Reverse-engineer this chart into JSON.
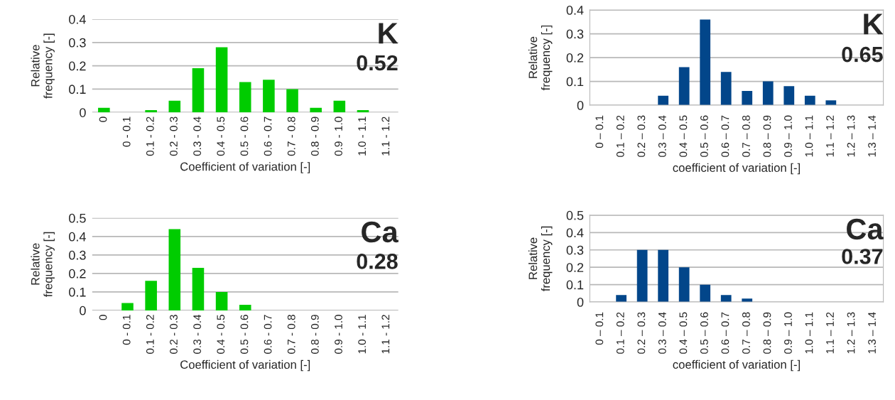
{
  "chart_data": [
    {
      "type": "bar",
      "categories": [
        "0",
        "0 - 0.1",
        "0.1 - 0.2",
        "0.2 - 0.3",
        "0.3 - 0.4",
        "0.4 - 0.5",
        "0.5 - 0.6",
        "0.6 - 0.7",
        "0.7 - 0.8",
        "0.8 - 0.9",
        "0.9 - 1.0",
        "1.0 - 1.1",
        "1.1 - 1.2"
      ],
      "values": [
        0.02,
        0,
        0.01,
        0.05,
        0.19,
        0.28,
        0.13,
        0.14,
        0.1,
        0.02,
        0.05,
        0.01,
        0
      ],
      "color": "#00cc00",
      "ylim": [
        0,
        0.4
      ],
      "yticks": [
        0,
        0.1,
        0.2,
        0.3,
        0.4
      ],
      "grid": "y",
      "xlabel": "Coefficient of variation [-]",
      "ylabel": "Relative\nfrequency [-]",
      "annotations": [
        "K",
        "0.52"
      ]
    },
    {
      "type": "bar",
      "categories": [
        "0 – 0.1",
        "0.1 – 0.2",
        "0.2 – 0.3",
        "0.3 – 0.4",
        "0.4 – 0.5",
        "0.5 – 0.6",
        "0.6 – 0.7",
        "0.7 – 0.8",
        "0.8 – 0.9",
        "0.9 – 1.0",
        "1.0 – 1.1",
        "1.1 – 1.2",
        "1.2 – 1.3",
        "1.3 – 1.4"
      ],
      "values": [
        0,
        0,
        0,
        0.04,
        0.16,
        0.36,
        0.14,
        0.06,
        0.1,
        0.08,
        0.04,
        0.02,
        0,
        0
      ],
      "color": "#02468a",
      "ylim": [
        0,
        0.4
      ],
      "yticks": [
        0,
        0.1,
        0.2,
        0.3,
        0.4
      ],
      "grid": "y",
      "xlabel": "coefficient of variation [-]",
      "ylabel": "Relative\nfrequency [-]",
      "annotations": [
        "K",
        "0.65"
      ]
    },
    {
      "type": "bar",
      "categories": [
        "0",
        "0 - 0.1",
        "0.1 - 0.2",
        "0.2 - 0.3",
        "0.3 - 0.4",
        "0.4 - 0.5",
        "0.5 - 0.6",
        "0.6 - 0.7",
        "0.7 - 0.8",
        "0.8 - 0.9",
        "0.9 - 1.0",
        "1.0 - 1.1",
        "1.1 - 1.2"
      ],
      "values": [
        0,
        0.04,
        0.16,
        0.44,
        0.23,
        0.1,
        0.03,
        0,
        0,
        0,
        0,
        0,
        0
      ],
      "color": "#00cc00",
      "ylim": [
        0,
        0.5
      ],
      "yticks": [
        0,
        0.1,
        0.2,
        0.3,
        0.4,
        0.5
      ],
      "grid": "y",
      "xlabel": "Coefficient of variation [-]",
      "ylabel": "Relative\nfrequency [-]",
      "annotations": [
        "Ca",
        "0.28"
      ]
    },
    {
      "type": "bar",
      "categories": [
        "0 – 0.1",
        "0.1 – 0.2",
        "0.2 – 0.3",
        "0.3 – 0.4",
        "0.4 – 0.5",
        "0.5 – 0.6",
        "0.6 – 0.7",
        "0.7 – 0.8",
        "0.8 – 0.9",
        "0.9 – 1.0",
        "1.0 – 1.1",
        "1.1 – 1.2",
        "1.2 – 1.3",
        "1.3 – 1.4"
      ],
      "values": [
        0,
        0.04,
        0.3,
        0.3,
        0.2,
        0.1,
        0.04,
        0.02,
        0,
        0,
        0,
        0,
        0,
        0
      ],
      "color": "#02468a",
      "ylim": [
        0,
        0.5
      ],
      "yticks": [
        0,
        0.1,
        0.2,
        0.3,
        0.4,
        0.5
      ],
      "grid": "y",
      "xlabel": "coefficient of variation [-]",
      "ylabel": "Relative\nfrequency [-]",
      "annotations": [
        "Ca",
        "0.37"
      ]
    }
  ]
}
